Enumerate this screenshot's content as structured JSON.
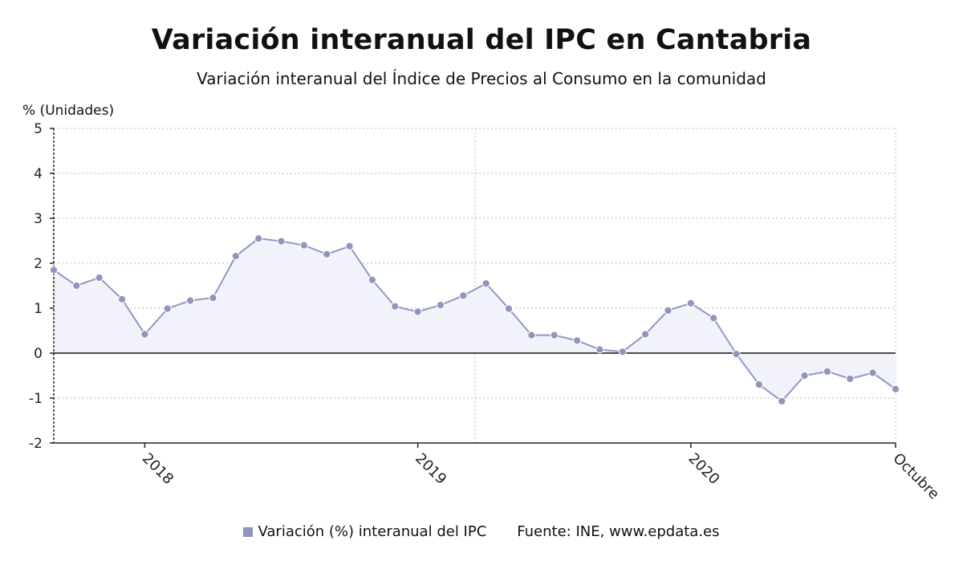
{
  "header": {
    "title": "Variación interanual del IPC en Cantabria",
    "subtitle": "Variación interanual del Índice de Precios al Consumo en la comunidad"
  },
  "chart_data": {
    "type": "area",
    "ylabel": "% (Unidades)",
    "ylim": [
      -2,
      5
    ],
    "yticks": [
      5,
      4,
      3,
      2,
      1,
      0,
      -1,
      -2
    ],
    "x_tick_labels": [
      "2018",
      "2019",
      "2020",
      "Octubre"
    ],
    "x_tick_index": [
      4,
      16,
      28,
      37
    ],
    "grid": true,
    "series": [
      {
        "name": "Variación (%) interanual del IPC",
        "values": [
          1.85,
          1.5,
          1.68,
          1.2,
          0.42,
          0.99,
          1.17,
          1.23,
          2.16,
          2.55,
          2.49,
          2.4,
          2.2,
          2.38,
          1.63,
          1.04,
          0.92,
          1.07,
          1.28,
          1.55,
          0.99,
          0.4,
          0.4,
          0.28,
          0.08,
          0.03,
          0.42,
          0.95,
          1.11,
          0.78,
          -0.02,
          -0.7,
          -1.07,
          -0.5,
          -0.41,
          -0.57,
          -0.44,
          -0.8
        ]
      }
    ]
  },
  "legend": {
    "label": "Variación (%) interanual del IPC",
    "color": "#8f95bd"
  },
  "footer": {
    "source": "Fuente: INE, www.epdata.es"
  },
  "colors": {
    "line": "#9297c2",
    "marker": "#8f95bd",
    "fill": "#f2f3fa",
    "zero_line": "#111111",
    "grid": "#bbbbbb"
  }
}
